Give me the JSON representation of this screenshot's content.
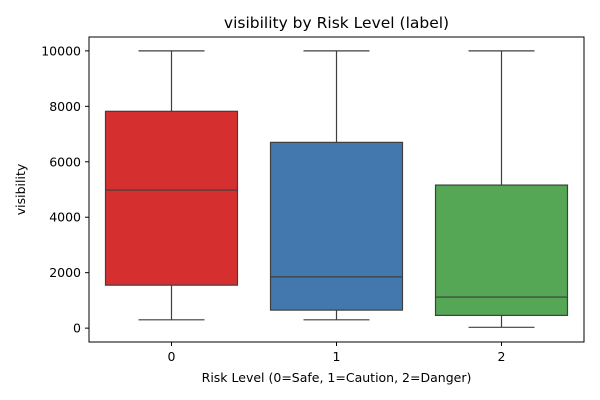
{
  "chart_data": {
    "type": "box",
    "title": "visibility by Risk Level (label)",
    "xlabel": "Risk Level (0=Safe, 1=Caution, 2=Danger)",
    "ylabel": "visibility",
    "categories": [
      "0",
      "1",
      "2"
    ],
    "ylim": [
      -500,
      10500
    ],
    "yticks": [
      0,
      2000,
      4000,
      6000,
      8000,
      10000
    ],
    "grid": false,
    "boxes": [
      {
        "category": "0",
        "whisker_low": 300,
        "q1": 1550,
        "median": 4980,
        "q3": 7820,
        "whisker_high": 10000,
        "color": "#d62f2f"
      },
      {
        "category": "1",
        "whisker_low": 300,
        "q1": 650,
        "median": 1850,
        "q3": 6700,
        "whisker_high": 10000,
        "color": "#4278ad"
      },
      {
        "category": "2",
        "whisker_low": 30,
        "q1": 460,
        "median": 1120,
        "q3": 5160,
        "whisker_high": 10000,
        "color": "#55a655"
      }
    ]
  }
}
